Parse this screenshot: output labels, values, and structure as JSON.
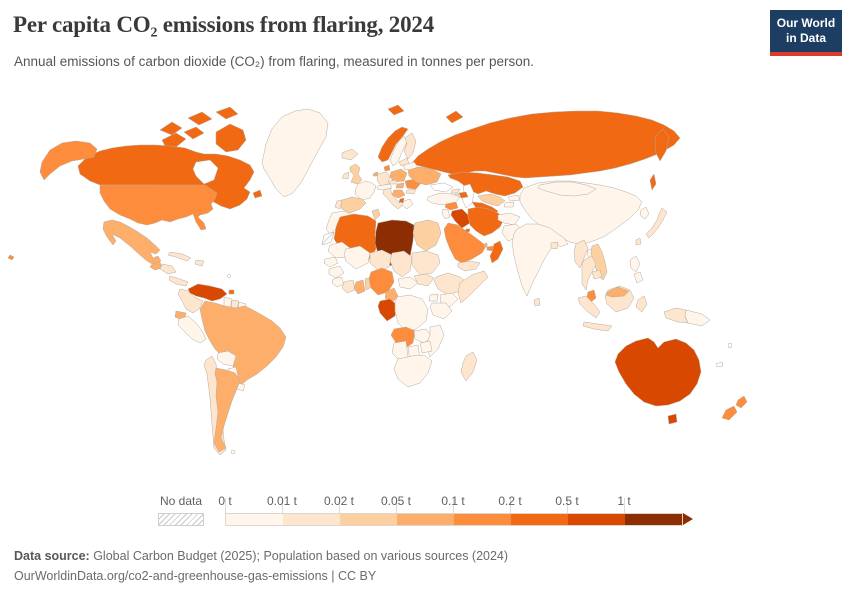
{
  "header": {
    "title": "Per capita CO₂ emissions from flaring, 2024",
    "subtitle": "Annual emissions of carbon dioxide (CO₂) from flaring, measured in tonnes per person."
  },
  "logo": {
    "line1": "Our World",
    "line2": "in Data",
    "bg": "#1d3d63",
    "accent": "#dc3b2e"
  },
  "legend": {
    "no_data_label": "No data"
  },
  "footer": {
    "data_source_label": "Data source:",
    "data_source": " Global Carbon Budget (2025); Population based on various sources (2024)",
    "attribution": "OurWorldinData.org/co2-and-greenhouse-gas-emissions | CC BY"
  },
  "chart_data": {
    "type": "choropleth",
    "title": "Per capita CO₂ emissions from flaring",
    "year": 2024,
    "unit": "tonnes per person",
    "unit_short": "t",
    "legend_position": "bottom",
    "bin_edges": [
      "0 t",
      "0.01 t",
      "0.02 t",
      "0.05 t",
      "0.1 t",
      "0.2 t",
      "0.5 t",
      "1 t"
    ],
    "bin_colors": [
      "#fff5eb",
      "#fee6ce",
      "#fdd0a2",
      "#fdae6b",
      "#fd8d3c",
      "#f16913",
      "#d94801",
      "#8c2d04"
    ],
    "no_data_style": "diagonal-hatch",
    "countries": [
      {
        "id": "canada",
        "name": "Canada",
        "bin": 5
      },
      {
        "id": "canada-arctic",
        "name": "Canada (Arctic islands)",
        "bin": 5
      },
      {
        "id": "newfoundland",
        "name": "Canada (Newfoundland)",
        "bin": 5
      },
      {
        "id": "alaska",
        "name": "United States (Alaska)",
        "bin": 4
      },
      {
        "id": "usa",
        "name": "United States",
        "bin": 4
      },
      {
        "id": "hawaii",
        "name": "United States (Hawaii)",
        "bin": 4
      },
      {
        "id": "greenland",
        "name": "Greenland",
        "bin": 0
      },
      {
        "id": "mexico",
        "name": "Mexico",
        "bin": 3
      },
      {
        "id": "guatemala",
        "name": "Guatemala",
        "bin": 3
      },
      {
        "id": "honduras-nicaragua",
        "name": "Honduras/Nicaragua",
        "bin": 1
      },
      {
        "id": "costa-rica-panama",
        "name": "Costa Rica/Panama",
        "bin": 1
      },
      {
        "id": "cuba",
        "name": "Cuba",
        "bin": 1
      },
      {
        "id": "hispaniola",
        "name": "Haiti/Dominican Republic",
        "bin": 1
      },
      {
        "id": "venezuela",
        "name": "Venezuela",
        "bin": 6
      },
      {
        "id": "trinidad",
        "name": "Trinidad and Tobago",
        "bin": 5
      },
      {
        "id": "colombia",
        "name": "Colombia",
        "bin": 1
      },
      {
        "id": "guyana",
        "name": "Guyana",
        "bin": 0
      },
      {
        "id": "suriname",
        "name": "Suriname",
        "bin": 1
      },
      {
        "id": "french-guiana",
        "name": "French Guiana",
        "bin": 0
      },
      {
        "id": "ecuador",
        "name": "Ecuador",
        "bin": 3
      },
      {
        "id": "peru",
        "name": "Peru",
        "bin": 0
      },
      {
        "id": "brazil",
        "name": "Brazil",
        "bin": 3
      },
      {
        "id": "bolivia",
        "name": "Bolivia",
        "bin": 0
      },
      {
        "id": "paraguay",
        "name": "Paraguay",
        "bin": 0
      },
      {
        "id": "uruguay",
        "name": "Uruguay",
        "bin": 0
      },
      {
        "id": "chile",
        "name": "Chile",
        "bin": 1
      },
      {
        "id": "argentina",
        "name": "Argentina",
        "bin": 3
      },
      {
        "id": "iceland",
        "name": "Iceland",
        "bin": 1
      },
      {
        "id": "norway",
        "name": "Norway",
        "bin": 5
      },
      {
        "id": "svalbard",
        "name": "Svalbard (Norway)",
        "bin": 5
      },
      {
        "id": "sweden",
        "name": "Sweden",
        "bin": 0
      },
      {
        "id": "finland",
        "name": "Finland",
        "bin": 1
      },
      {
        "id": "denmark",
        "name": "Denmark",
        "bin": 4
      },
      {
        "id": "uk",
        "name": "United Kingdom",
        "bin": 2
      },
      {
        "id": "ireland",
        "name": "Ireland",
        "bin": 1
      },
      {
        "id": "netherlands",
        "name": "Netherlands",
        "bin": 3
      },
      {
        "id": "germany",
        "name": "Germany",
        "bin": 1
      },
      {
        "id": "poland",
        "name": "Poland",
        "bin": 3
      },
      {
        "id": "france",
        "name": "France",
        "bin": 0
      },
      {
        "id": "spain",
        "name": "Spain",
        "bin": 2
      },
      {
        "id": "portugal",
        "name": "Portugal",
        "bin": 1
      },
      {
        "id": "italy",
        "name": "Italy",
        "bin": 1
      },
      {
        "id": "switzerland-austria",
        "name": "Switzerland/Austria",
        "bin": 0
      },
      {
        "id": "czech",
        "name": "Czechia",
        "bin": 1
      },
      {
        "id": "hungary",
        "name": "Hungary",
        "bin": 3
      },
      {
        "id": "balkans",
        "name": "Croatia/Serbia",
        "bin": 3
      },
      {
        "id": "albania",
        "name": "Albania",
        "bin": 5
      },
      {
        "id": "greece",
        "name": "Greece",
        "bin": 0
      },
      {
        "id": "romania",
        "name": "Romania",
        "bin": 4
      },
      {
        "id": "bulgaria",
        "name": "Bulgaria",
        "bin": 1
      },
      {
        "id": "ukraine",
        "name": "Ukraine",
        "bin": 3
      },
      {
        "id": "belarus",
        "name": "Belarus",
        "bin": 0
      },
      {
        "id": "baltics",
        "name": "Baltic states",
        "bin": 1
      },
      {
        "id": "russia",
        "name": "Russia",
        "bin": 5
      },
      {
        "id": "novaya-zemlya",
        "name": "Novaya Zemlya (Russia)",
        "bin": 5
      },
      {
        "id": "kazakhstan",
        "name": "Kazakhstan",
        "bin": 5
      },
      {
        "id": "uzbekistan",
        "name": "Uzbekistan",
        "bin": 2
      },
      {
        "id": "turkmenistan",
        "name": "Turkmenistan",
        "bin": 5
      },
      {
        "id": "kyrgyzstan",
        "name": "Kyrgyzstan",
        "bin": 0
      },
      {
        "id": "tajikistan",
        "name": "Tajikistan",
        "bin": 0
      },
      {
        "id": "georgia",
        "name": "Georgia",
        "bin": 1
      },
      {
        "id": "armenia",
        "name": "Armenia",
        "bin": 1
      },
      {
        "id": "azerbaijan",
        "name": "Azerbaijan",
        "bin": 5
      },
      {
        "id": "turkey",
        "name": "Turkey",
        "bin": 0
      },
      {
        "id": "syria",
        "name": "Syria",
        "bin": 4
      },
      {
        "id": "israel-jordan",
        "name": "Israel/Jordan",
        "bin": 0
      },
      {
        "id": "iraq",
        "name": "Iraq",
        "bin": 6
      },
      {
        "id": "iran",
        "name": "Iran",
        "bin": 5
      },
      {
        "id": "kuwait",
        "name": "Kuwait",
        "bin": 5
      },
      {
        "id": "saudi-arabia",
        "name": "Saudi Arabia",
        "bin": 4
      },
      {
        "id": "qatar",
        "name": "Qatar",
        "bin": 3
      },
      {
        "id": "uae",
        "name": "United Arab Emirates",
        "bin": 4
      },
      {
        "id": "oman",
        "name": "Oman",
        "bin": 5
      },
      {
        "id": "yemen",
        "name": "Yemen",
        "bin": 1
      },
      {
        "id": "afghanistan",
        "name": "Afghanistan",
        "bin": 0
      },
      {
        "id": "pakistan",
        "name": "Pakistan",
        "bin": 0
      },
      {
        "id": "india",
        "name": "India",
        "bin": 0
      },
      {
        "id": "sri-lanka",
        "name": "Sri Lanka",
        "bin": 1
      },
      {
        "id": "bangladesh",
        "name": "Bangladesh",
        "bin": 1
      },
      {
        "id": "china",
        "name": "China",
        "bin": 0
      },
      {
        "id": "mongolia",
        "name": "Mongolia",
        "bin": 0
      },
      {
        "id": "taiwan",
        "name": "Taiwan",
        "bin": 1
      },
      {
        "id": "south-korea",
        "name": "South Korea",
        "bin": 0
      },
      {
        "id": "japan",
        "name": "Japan",
        "bin": 1
      },
      {
        "id": "myanmar",
        "name": "Myanmar",
        "bin": 1
      },
      {
        "id": "thailand",
        "name": "Thailand",
        "bin": 1
      },
      {
        "id": "laos",
        "name": "Laos",
        "bin": 0
      },
      {
        "id": "vietnam",
        "name": "Vietnam",
        "bin": 2
      },
      {
        "id": "cambodia",
        "name": "Cambodia",
        "bin": 1
      },
      {
        "id": "malaysia-peninsula",
        "name": "Malaysia",
        "bin": 4
      },
      {
        "id": "malaysia-borneo",
        "name": "Malaysia (Borneo)",
        "bin": 3
      },
      {
        "id": "indonesia-sumatra",
        "name": "Indonesia (Sumatra)",
        "bin": 1
      },
      {
        "id": "indonesia-borneo",
        "name": "Indonesia (Kalimantan)",
        "bin": 1
      },
      {
        "id": "java",
        "name": "Indonesia (Java)",
        "bin": 1
      },
      {
        "id": "sulawesi",
        "name": "Indonesia (Sulawesi)",
        "bin": 1
      },
      {
        "id": "philippines",
        "name": "Philippines",
        "bin": 0
      },
      {
        "id": "new-guinea-west",
        "name": "Indonesia (Papua)",
        "bin": 1
      },
      {
        "id": "papua-new-guinea",
        "name": "Papua New Guinea",
        "bin": 0
      },
      {
        "id": "australia",
        "name": "Australia",
        "bin": 6
      },
      {
        "id": "tasmania",
        "name": "Australia (Tasmania)",
        "bin": 6
      },
      {
        "id": "new-zealand-north",
        "name": "New Zealand (North Island)",
        "bin": 4
      },
      {
        "id": "new-zealand-south",
        "name": "New Zealand (South Island)",
        "bin": 4
      },
      {
        "id": "morocco",
        "name": "Morocco",
        "bin": 0
      },
      {
        "id": "western-sahara",
        "name": "Western Sahara",
        "bin": "no_data"
      },
      {
        "id": "algeria",
        "name": "Algeria",
        "bin": 5
      },
      {
        "id": "tunisia",
        "name": "Tunisia",
        "bin": 2
      },
      {
        "id": "libya",
        "name": "Libya",
        "bin": 7
      },
      {
        "id": "egypt",
        "name": "Egypt",
        "bin": 2
      },
      {
        "id": "mauritania",
        "name": "Mauritania",
        "bin": 0
      },
      {
        "id": "mali",
        "name": "Mali",
        "bin": 0
      },
      {
        "id": "niger",
        "name": "Niger",
        "bin": 1
      },
      {
        "id": "chad",
        "name": "Chad",
        "bin": 1
      },
      {
        "id": "sudan",
        "name": "Sudan",
        "bin": 1
      },
      {
        "id": "senegal",
        "name": "Senegal",
        "bin": 0
      },
      {
        "id": "guinea",
        "name": "Guinea",
        "bin": 0
      },
      {
        "id": "liberia-sierra-leone",
        "name": "Sierra Leone/Liberia",
        "bin": 0
      },
      {
        "id": "ivory-coast",
        "name": "Côte d'Ivoire",
        "bin": 1
      },
      {
        "id": "ghana",
        "name": "Ghana",
        "bin": 3
      },
      {
        "id": "togo-benin",
        "name": "Togo/Benin",
        "bin": 2
      },
      {
        "id": "nigeria",
        "name": "Nigeria",
        "bin": 4
      },
      {
        "id": "cameroon",
        "name": "Cameroon",
        "bin": 3
      },
      {
        "id": "central-african-republic",
        "name": "Central African Republic",
        "bin": 0
      },
      {
        "id": "south-sudan",
        "name": "South Sudan",
        "bin": 1
      },
      {
        "id": "ethiopia",
        "name": "Ethiopia",
        "bin": 1
      },
      {
        "id": "somalia",
        "name": "Somalia",
        "bin": 1
      },
      {
        "id": "uganda",
        "name": "Uganda",
        "bin": 0
      },
      {
        "id": "kenya",
        "name": "Kenya",
        "bin": 0
      },
      {
        "id": "tanzania",
        "name": "Tanzania",
        "bin": 0
      },
      {
        "id": "drc",
        "name": "Democratic Republic of Congo",
        "bin": 0
      },
      {
        "id": "gabon-congo",
        "name": "Gabon/Congo",
        "bin": 6
      },
      {
        "id": "angola",
        "name": "Angola",
        "bin": 4
      },
      {
        "id": "zambia",
        "name": "Zambia",
        "bin": 0
      },
      {
        "id": "zimbabwe",
        "name": "Zimbabwe",
        "bin": 0
      },
      {
        "id": "mozambique",
        "name": "Mozambique",
        "bin": 0
      },
      {
        "id": "namibia",
        "name": "Namibia",
        "bin": 0
      },
      {
        "id": "botswana",
        "name": "Botswana",
        "bin": 0
      },
      {
        "id": "south-africa",
        "name": "South Africa",
        "bin": 0
      },
      {
        "id": "madagascar",
        "name": "Madagascar",
        "bin": 1
      }
    ]
  }
}
